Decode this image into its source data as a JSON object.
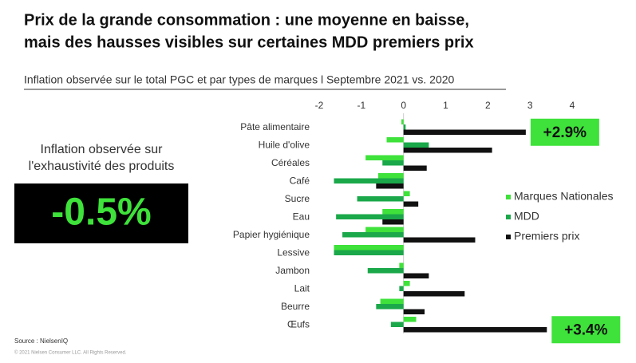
{
  "chart_data": {
    "type": "hbar",
    "title": [
      "Prix de la grande consommation : une moyenne en baisse,",
      "mais des hausses visibles sur certaines MDD premiers prix"
    ],
    "subtitle": "Inflation observée sur le total PGC et par types de marques l Septembre 2021 vs. 2020",
    "kpi_label": [
      "Inflation observée sur",
      "l'exhaustivité des produits"
    ],
    "kpi_value": "-0.5%",
    "source": "Source : NielsenIQ",
    "copyright": "© 2021 Nielsen Consumer LLC. All Rights Reserved.",
    "categories": [
      "Pâte alimentaire",
      "Huile d'olive",
      "Céréales",
      "Café",
      "Sucre",
      "Eau",
      "Papier hygiénique",
      "Lessive",
      "Jambon",
      "Lait",
      "Beurre",
      "Œufs"
    ],
    "series": [
      {
        "name": "Marques Nationales",
        "color": "#3ee23a",
        "values": [
          -0.05,
          -0.4,
          -0.9,
          -0.6,
          0.15,
          -0.5,
          -0.9,
          -1.65,
          -0.1,
          0.15,
          -0.55,
          0.3
        ]
      },
      {
        "name": "MDD",
        "color": "#1aa84a",
        "values": [
          0.05,
          0.6,
          -0.5,
          -1.65,
          -1.1,
          -1.6,
          -1.45,
          -1.65,
          -0.85,
          -0.1,
          -0.65,
          -0.3
        ]
      },
      {
        "name": "Premiers prix",
        "color": "#111111",
        "values": [
          2.9,
          2.1,
          0.55,
          -0.65,
          0.35,
          -0.5,
          1.7,
          0,
          0.6,
          1.45,
          0.5,
          3.4
        ],
        "value_labels": [
          "+2.9%",
          null,
          null,
          null,
          null,
          null,
          null,
          null,
          null,
          null,
          null,
          "+3.4%"
        ]
      }
    ],
    "xlim": [
      -2,
      4
    ],
    "xticks": [
      -2,
      -1,
      0,
      1,
      2,
      3,
      4
    ],
    "legend": "right"
  }
}
